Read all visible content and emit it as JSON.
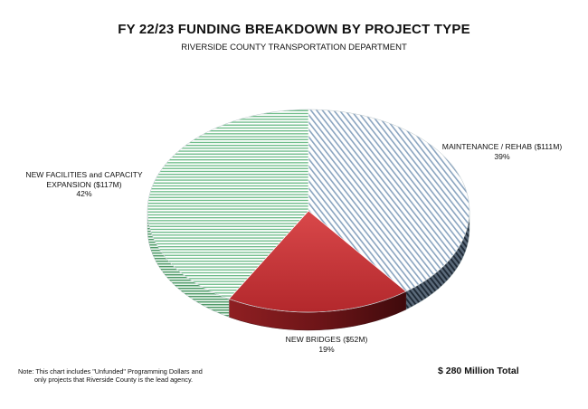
{
  "chart_data": {
    "type": "pie",
    "title": "FY 22/23 FUNDING BREAKDOWN BY PROJECT TYPE",
    "subtitle": "RIVERSIDE COUNTY TRANSPORTATION DEPARTMENT",
    "units": "$M",
    "slices": [
      {
        "label": "MAINTENANCE / REHAB ($111M)",
        "value": 111,
        "percent_label": "39%",
        "color": "#8aa4bf",
        "pattern": "diagonal-stripes"
      },
      {
        "label": "NEW BRIDGES ($52M)",
        "value": 52,
        "percent_label": "19%",
        "color": "#c0383a",
        "pattern": "solid"
      },
      {
        "label": "NEW FACILITIES and CAPACITY EXPANSION ($117M)",
        "label_lines": [
          "NEW FACILITIES and CAPACITY",
          "EXPANSION ($117M)"
        ],
        "value": 117,
        "percent_label": "42%",
        "color": "#6aba86",
        "pattern": "horizontal-stripes"
      }
    ],
    "style": "3d"
  },
  "note": {
    "line1": "Note: This chart includes \"Unfunded\" Programming Dollars and",
    "line2": "only projects that Riverside County is the lead agency."
  },
  "total": "$ 280 Million Total"
}
